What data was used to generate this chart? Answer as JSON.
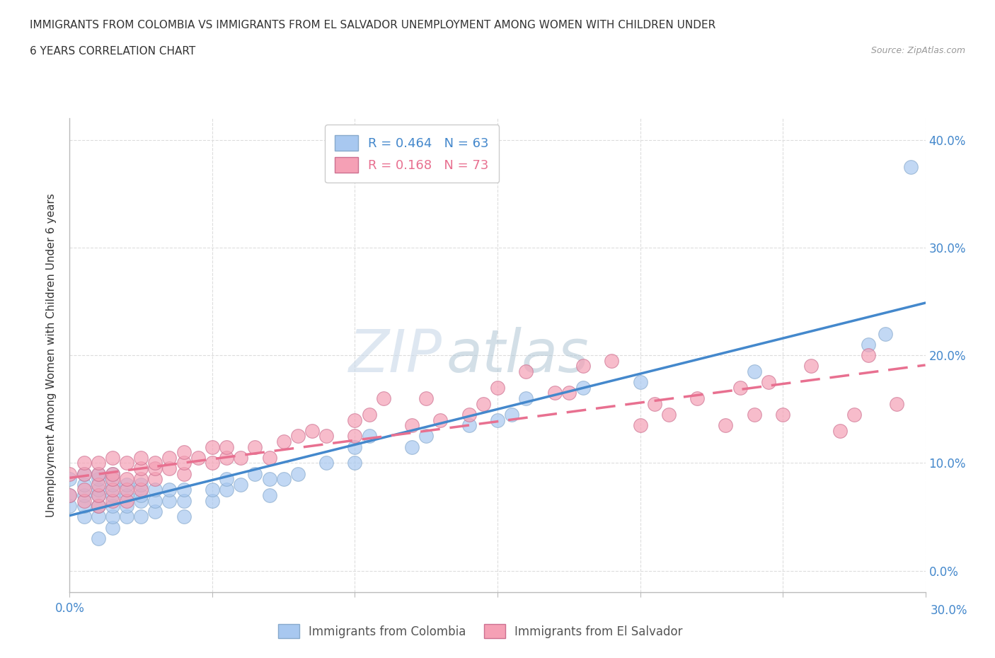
{
  "title_line1": "IMMIGRANTS FROM COLOMBIA VS IMMIGRANTS FROM EL SALVADOR UNEMPLOYMENT AMONG WOMEN WITH CHILDREN UNDER",
  "title_line2": "6 YEARS CORRELATION CHART",
  "source": "Source: ZipAtlas.com",
  "ylabel_label": "Unemployment Among Women with Children Under 6 years",
  "watermark_zip": "ZIP",
  "watermark_atlas": "atlas",
  "legend_colombia": "Immigrants from Colombia",
  "legend_elsalvador": "Immigrants from El Salvador",
  "R_colombia": 0.464,
  "N_colombia": 63,
  "R_elsalvador": 0.168,
  "N_elsalvador": 73,
  "color_colombia": "#a8c8f0",
  "color_elsalvador": "#f5a0b5",
  "line_colombia": "#4488cc",
  "line_elsalvador": "#e87090",
  "xmin": 0.0,
  "xmax": 0.3,
  "ymin": -0.02,
  "ymax": 0.42,
  "ytick_vals": [
    0.0,
    0.1,
    0.2,
    0.3,
    0.4
  ],
  "ytick_labels": [
    "0.0%",
    "10.0%",
    "20.0%",
    "30.0%",
    "40.0%"
  ],
  "right_ytick_labels_color": "#4488cc",
  "colombia_x": [
    0.0,
    0.0,
    0.0,
    0.005,
    0.005,
    0.005,
    0.005,
    0.005,
    0.01,
    0.01,
    0.01,
    0.01,
    0.01,
    0.01,
    0.01,
    0.015,
    0.015,
    0.015,
    0.015,
    0.015,
    0.015,
    0.02,
    0.02,
    0.02,
    0.02,
    0.025,
    0.025,
    0.025,
    0.025,
    0.03,
    0.03,
    0.03,
    0.035,
    0.035,
    0.04,
    0.04,
    0.04,
    0.05,
    0.05,
    0.055,
    0.055,
    0.06,
    0.065,
    0.07,
    0.07,
    0.075,
    0.08,
    0.09,
    0.1,
    0.1,
    0.105,
    0.12,
    0.125,
    0.14,
    0.15,
    0.155,
    0.16,
    0.18,
    0.2,
    0.24,
    0.28,
    0.286,
    0.295
  ],
  "colombia_y": [
    0.06,
    0.07,
    0.085,
    0.05,
    0.06,
    0.07,
    0.08,
    0.09,
    0.03,
    0.05,
    0.06,
    0.07,
    0.075,
    0.085,
    0.09,
    0.04,
    0.05,
    0.06,
    0.07,
    0.08,
    0.09,
    0.05,
    0.06,
    0.07,
    0.08,
    0.05,
    0.065,
    0.07,
    0.08,
    0.055,
    0.065,
    0.075,
    0.065,
    0.075,
    0.05,
    0.065,
    0.075,
    0.065,
    0.075,
    0.075,
    0.085,
    0.08,
    0.09,
    0.07,
    0.085,
    0.085,
    0.09,
    0.1,
    0.1,
    0.115,
    0.125,
    0.115,
    0.125,
    0.135,
    0.14,
    0.145,
    0.16,
    0.17,
    0.175,
    0.185,
    0.21,
    0.22,
    0.375
  ],
  "elsalvador_x": [
    0.0,
    0.0,
    0.005,
    0.005,
    0.005,
    0.005,
    0.01,
    0.01,
    0.01,
    0.01,
    0.01,
    0.015,
    0.015,
    0.015,
    0.015,
    0.015,
    0.02,
    0.02,
    0.02,
    0.02,
    0.025,
    0.025,
    0.025,
    0.025,
    0.03,
    0.03,
    0.03,
    0.035,
    0.035,
    0.04,
    0.04,
    0.04,
    0.045,
    0.05,
    0.05,
    0.055,
    0.055,
    0.06,
    0.065,
    0.07,
    0.075,
    0.08,
    0.085,
    0.09,
    0.1,
    0.1,
    0.105,
    0.11,
    0.12,
    0.125,
    0.13,
    0.14,
    0.145,
    0.15,
    0.16,
    0.17,
    0.175,
    0.18,
    0.19,
    0.2,
    0.205,
    0.21,
    0.22,
    0.23,
    0.235,
    0.24,
    0.245,
    0.25,
    0.26,
    0.27,
    0.275,
    0.28,
    0.29
  ],
  "elsalvador_y": [
    0.07,
    0.09,
    0.065,
    0.075,
    0.09,
    0.1,
    0.06,
    0.07,
    0.08,
    0.09,
    0.1,
    0.065,
    0.075,
    0.085,
    0.09,
    0.105,
    0.065,
    0.075,
    0.085,
    0.1,
    0.075,
    0.085,
    0.095,
    0.105,
    0.085,
    0.095,
    0.1,
    0.095,
    0.105,
    0.09,
    0.1,
    0.11,
    0.105,
    0.1,
    0.115,
    0.105,
    0.115,
    0.105,
    0.115,
    0.105,
    0.12,
    0.125,
    0.13,
    0.125,
    0.125,
    0.14,
    0.145,
    0.16,
    0.135,
    0.16,
    0.14,
    0.145,
    0.155,
    0.17,
    0.185,
    0.165,
    0.165,
    0.19,
    0.195,
    0.135,
    0.155,
    0.145,
    0.16,
    0.135,
    0.17,
    0.145,
    0.175,
    0.145,
    0.19,
    0.13,
    0.145,
    0.2,
    0.155
  ]
}
